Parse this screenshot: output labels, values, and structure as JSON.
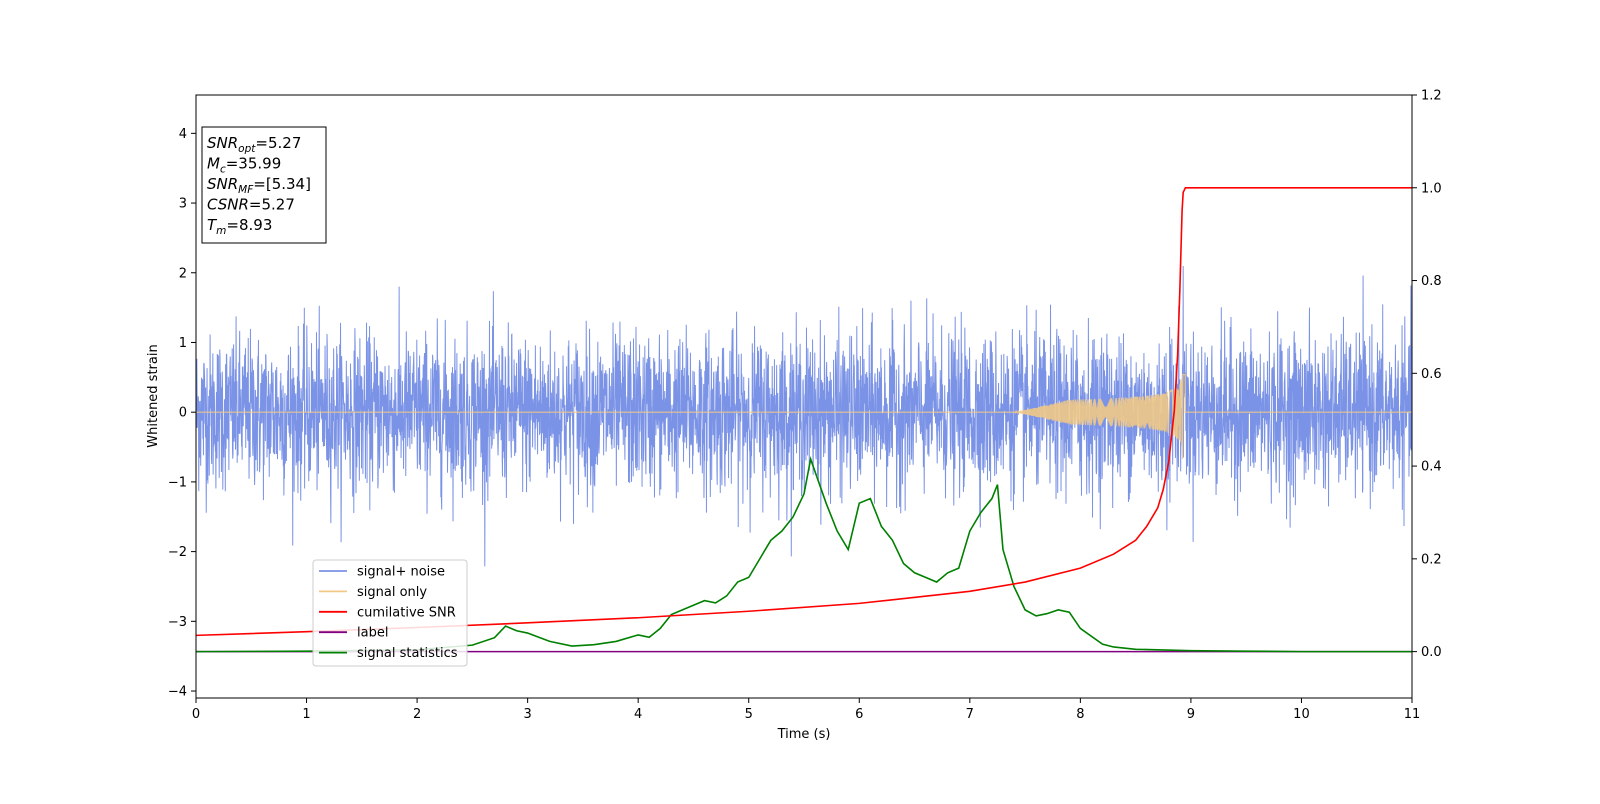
{
  "chart_data": {
    "type": "line",
    "xlabel": "Time (s)",
    "ylabel": "Whitened strain",
    "y2label": "",
    "xlim": [
      0,
      11
    ],
    "ylim": [
      -4.1,
      4.55
    ],
    "y2lim": [
      -0.1,
      1.2
    ],
    "grid": false,
    "legend_position": "lower-left",
    "x_ticks": [
      "0",
      "1",
      "2",
      "3",
      "4",
      "5",
      "6",
      "7",
      "8",
      "9",
      "10",
      "11"
    ],
    "y_ticks": [
      "4",
      "3",
      "2",
      "1",
      "0",
      "−1",
      "−2",
      "−3",
      "−4"
    ],
    "y2_ticks": [
      "1.2",
      "1.0",
      "0.8",
      "0.6",
      "0.4",
      "0.2",
      "0.0"
    ],
    "annotation": {
      "lines": [
        {
          "base": "SNR",
          "sub": "opt",
          "value": "=5.27"
        },
        {
          "base": "M",
          "sub": "c",
          "value": "=35.99"
        },
        {
          "base": "SNR",
          "sub": "MF",
          "value": "=[5.34]"
        },
        {
          "base": "CSNR",
          "sub": "",
          "value": "=5.27"
        },
        {
          "base": "T",
          "sub": "m",
          "value": "=8.93"
        }
      ]
    },
    "series": [
      {
        "name": "signal+ noise",
        "color": "#7b93e6",
        "axis": "left",
        "description_points": {
          "noise_amplitude_sigma": 0.55,
          "x_range": [
            0,
            11
          ]
        }
      },
      {
        "name": "signal only",
        "color": "#f0c987",
        "axis": "left",
        "chirp": {
          "merger_time": 8.93,
          "start_time": 7.4,
          "peak_amplitude": 0.72
        }
      },
      {
        "name": "cumilative SNR",
        "color": "#ff0000",
        "axis": "right",
        "x": [
          0,
          1,
          2,
          3,
          4,
          5,
          6,
          7,
          7.5,
          8,
          8.3,
          8.5,
          8.6,
          8.7,
          8.75,
          8.8,
          8.85,
          8.88,
          8.9,
          8.92,
          8.93,
          8.95,
          9,
          10,
          11
        ],
        "y": [
          0.035,
          0.043,
          0.052,
          0.062,
          0.073,
          0.087,
          0.104,
          0.13,
          0.15,
          0.18,
          0.21,
          0.24,
          0.27,
          0.31,
          0.35,
          0.41,
          0.52,
          0.64,
          0.78,
          0.95,
          0.99,
          1.0,
          1.0,
          1.0,
          1.0
        ]
      },
      {
        "name": "label",
        "color": "#800080",
        "axis": "right",
        "x": [
          0,
          11
        ],
        "y": [
          0.0,
          0.0
        ]
      },
      {
        "name": "signal statistics",
        "color": "#008000",
        "axis": "right",
        "x": [
          0,
          1,
          2,
          2.5,
          2.7,
          2.8,
          2.9,
          3.0,
          3.2,
          3.4,
          3.6,
          3.8,
          4.0,
          4.1,
          4.2,
          4.3,
          4.4,
          4.5,
          4.6,
          4.7,
          4.8,
          4.9,
          5.0,
          5.1,
          5.2,
          5.3,
          5.4,
          5.5,
          5.56,
          5.7,
          5.8,
          5.9,
          6.0,
          6.1,
          6.2,
          6.3,
          6.4,
          6.5,
          6.6,
          6.7,
          6.8,
          6.9,
          7.0,
          7.1,
          7.2,
          7.25,
          7.3,
          7.4,
          7.5,
          7.6,
          7.7,
          7.8,
          7.9,
          8.0,
          8.2,
          8.3,
          8.5,
          9.0,
          9.5,
          10,
          11
        ],
        "y": [
          0.0,
          0.001,
          0.004,
          0.014,
          0.03,
          0.055,
          0.045,
          0.04,
          0.022,
          0.012,
          0.015,
          0.022,
          0.036,
          0.031,
          0.05,
          0.08,
          0.09,
          0.1,
          0.11,
          0.105,
          0.12,
          0.15,
          0.16,
          0.2,
          0.24,
          0.26,
          0.29,
          0.34,
          0.415,
          0.32,
          0.26,
          0.22,
          0.32,
          0.33,
          0.27,
          0.24,
          0.19,
          0.17,
          0.16,
          0.15,
          0.17,
          0.18,
          0.26,
          0.3,
          0.33,
          0.36,
          0.22,
          0.14,
          0.09,
          0.077,
          0.082,
          0.09,
          0.085,
          0.05,
          0.016,
          0.01,
          0.005,
          0.002,
          0.001,
          0.0,
          0.0
        ]
      }
    ]
  }
}
